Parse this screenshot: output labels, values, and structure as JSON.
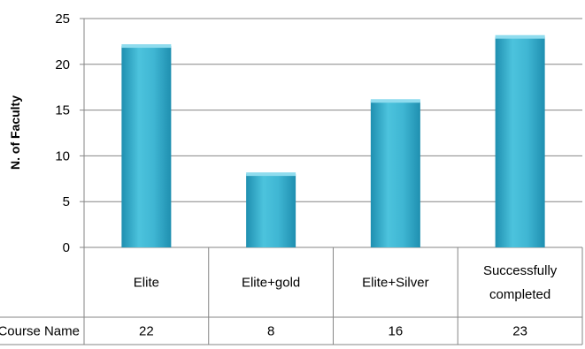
{
  "chart_data": {
    "type": "bar",
    "title": "",
    "xlabel": "",
    "ylabel": "N. of Faculty",
    "ylim": [
      0,
      25
    ],
    "yticks": [
      0,
      5,
      10,
      15,
      20,
      25
    ],
    "grid": true,
    "categories": [
      [
        "Elite"
      ],
      [
        "Elite+gold"
      ],
      [
        "Elite+Silver"
      ],
      [
        "Successfully",
        "completed"
      ]
    ],
    "series": [
      {
        "name": "Course Name",
        "values": [
          22,
          8,
          16,
          23
        ]
      }
    ],
    "data_table": {
      "row_label": "Course Name",
      "values": [
        "22",
        "8",
        "16",
        "23"
      ]
    },
    "colors": {
      "bar": "#3fb6d3",
      "bar_dark": "#1f8fb0",
      "bar_top": "#8fdcee",
      "grid": "#868686"
    }
  }
}
